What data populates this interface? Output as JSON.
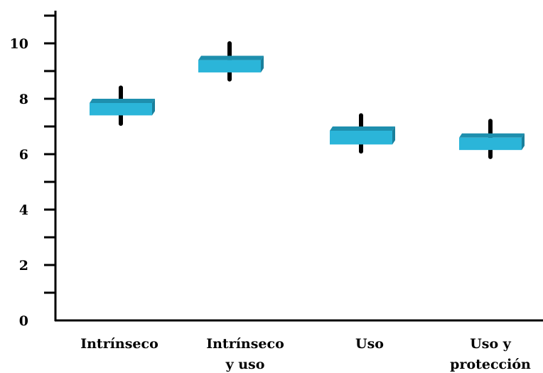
{
  "chart_data": {
    "type": "box",
    "title": "",
    "xlabel": "",
    "ylabel": "",
    "ylim": [
      0,
      11
    ],
    "yticks": [
      0,
      2,
      4,
      6,
      8,
      10
    ],
    "grid": false,
    "categories": [
      [
        "Intrínseco"
      ],
      [
        "Intrínseco",
        "y uso"
      ],
      [
        "Uso"
      ],
      [
        "Uso y",
        "protección"
      ]
    ],
    "boxes": [
      {
        "low": 7.1,
        "q1": 7.4,
        "q3": 8.0,
        "high": 8.4
      },
      {
        "low": 8.7,
        "q1": 8.95,
        "q3": 9.55,
        "high": 10.0
      },
      {
        "low": 6.1,
        "q1": 6.35,
        "q3": 7.0,
        "high": 7.4
      },
      {
        "low": 5.9,
        "q1": 6.15,
        "q3": 6.75,
        "high": 7.2
      }
    ],
    "colors": {
      "box_front": "#2bb5d9",
      "box_top": "#1e8fae",
      "box_side": "#1a7f9b",
      "whisker": "#000000",
      "axis": "#000000"
    }
  }
}
